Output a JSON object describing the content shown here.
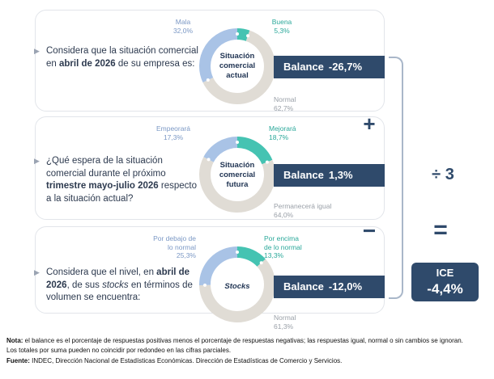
{
  "panels": [
    {
      "question_pre": "Considera que la situación comercial en ",
      "question_bold": "abril de 2026",
      "question_post": " de su empresa es:",
      "center": [
        "Situación",
        "comercial",
        "actual"
      ],
      "negative_label": "Mala",
      "negative_value": "32,0%",
      "positive_label": "Buena",
      "positive_value": "5,3%",
      "neutral_label": "Normal",
      "neutral_value": "62,7%",
      "balance_label": "Balance",
      "balance_value": "-26,7%"
    },
    {
      "question_pre": "¿Qué espera de la situación comercial durante el próximo ",
      "question_bold": "trimestre mayo-julio 2026",
      "question_post": " respecto a la situación actual?",
      "center": [
        "Situación",
        "comercial",
        "futura"
      ],
      "negative_label": "Empeorará",
      "negative_value": "17,3%",
      "positive_label": "Mejorará",
      "positive_value": "18,7%",
      "neutral_label": "Permanecerá igual",
      "neutral_value": "64,0%",
      "balance_label": "Balance",
      "balance_value": "1,3%"
    },
    {
      "question_pre": "Considera que el nivel, en ",
      "question_bold": "abril de 2026",
      "question_mid": ", de sus ",
      "question_italic": "stocks",
      "question_post": " en términos de volumen se encuentra:",
      "center": [
        "Stocks"
      ],
      "negative_label_1": "Por debajo de",
      "negative_label_2": "lo normal",
      "negative_value": "25,3%",
      "positive_label_1": "Por encima",
      "positive_label_2": "de lo normal",
      "positive_value": "13,3%",
      "neutral_label": "Normal",
      "neutral_value": "61,3%",
      "balance_label": "Balance",
      "balance_value": "-12,0%"
    }
  ],
  "operators": {
    "plus": "+",
    "minus": "−",
    "divide": "÷ 3",
    "equals": "="
  },
  "ice": {
    "label": "ICE",
    "value": "-4,4%"
  },
  "footer": {
    "note_label": "Nota:",
    "note_text": " el balance es el porcentaje de respuestas positivas menos el porcentaje de respuestas negativas; las respuestas igual, normal o sin cambios se ignoran.",
    "note_text_2": "Los totales por suma pueden no coincidir por redondeo en las cifras parciales.",
    "source_label": "Fuente:",
    "source_text": " INDEC, Dirección Nacional de Estadísticas Económicas. Dirección de Estadísticas de Comercio y Servicios."
  },
  "colors": {
    "negative": "#a9c3e6",
    "positive": "#45c3b2",
    "neutral": "#e0dcd5",
    "dark": "#2f4a6b"
  },
  "chart_data": [
    {
      "type": "pie",
      "categories": [
        "Buena",
        "Normal",
        "Mala"
      ],
      "values": [
        5.3,
        62.7,
        32.0
      ]
    },
    {
      "type": "pie",
      "categories": [
        "Mejorará",
        "Permanecerá igual",
        "Empeorará"
      ],
      "values": [
        18.7,
        64.0,
        17.3
      ]
    },
    {
      "type": "pie",
      "categories": [
        "Por encima de lo normal",
        "Normal",
        "Por debajo de lo normal"
      ],
      "values": [
        13.3,
        61.3,
        25.3
      ]
    }
  ]
}
